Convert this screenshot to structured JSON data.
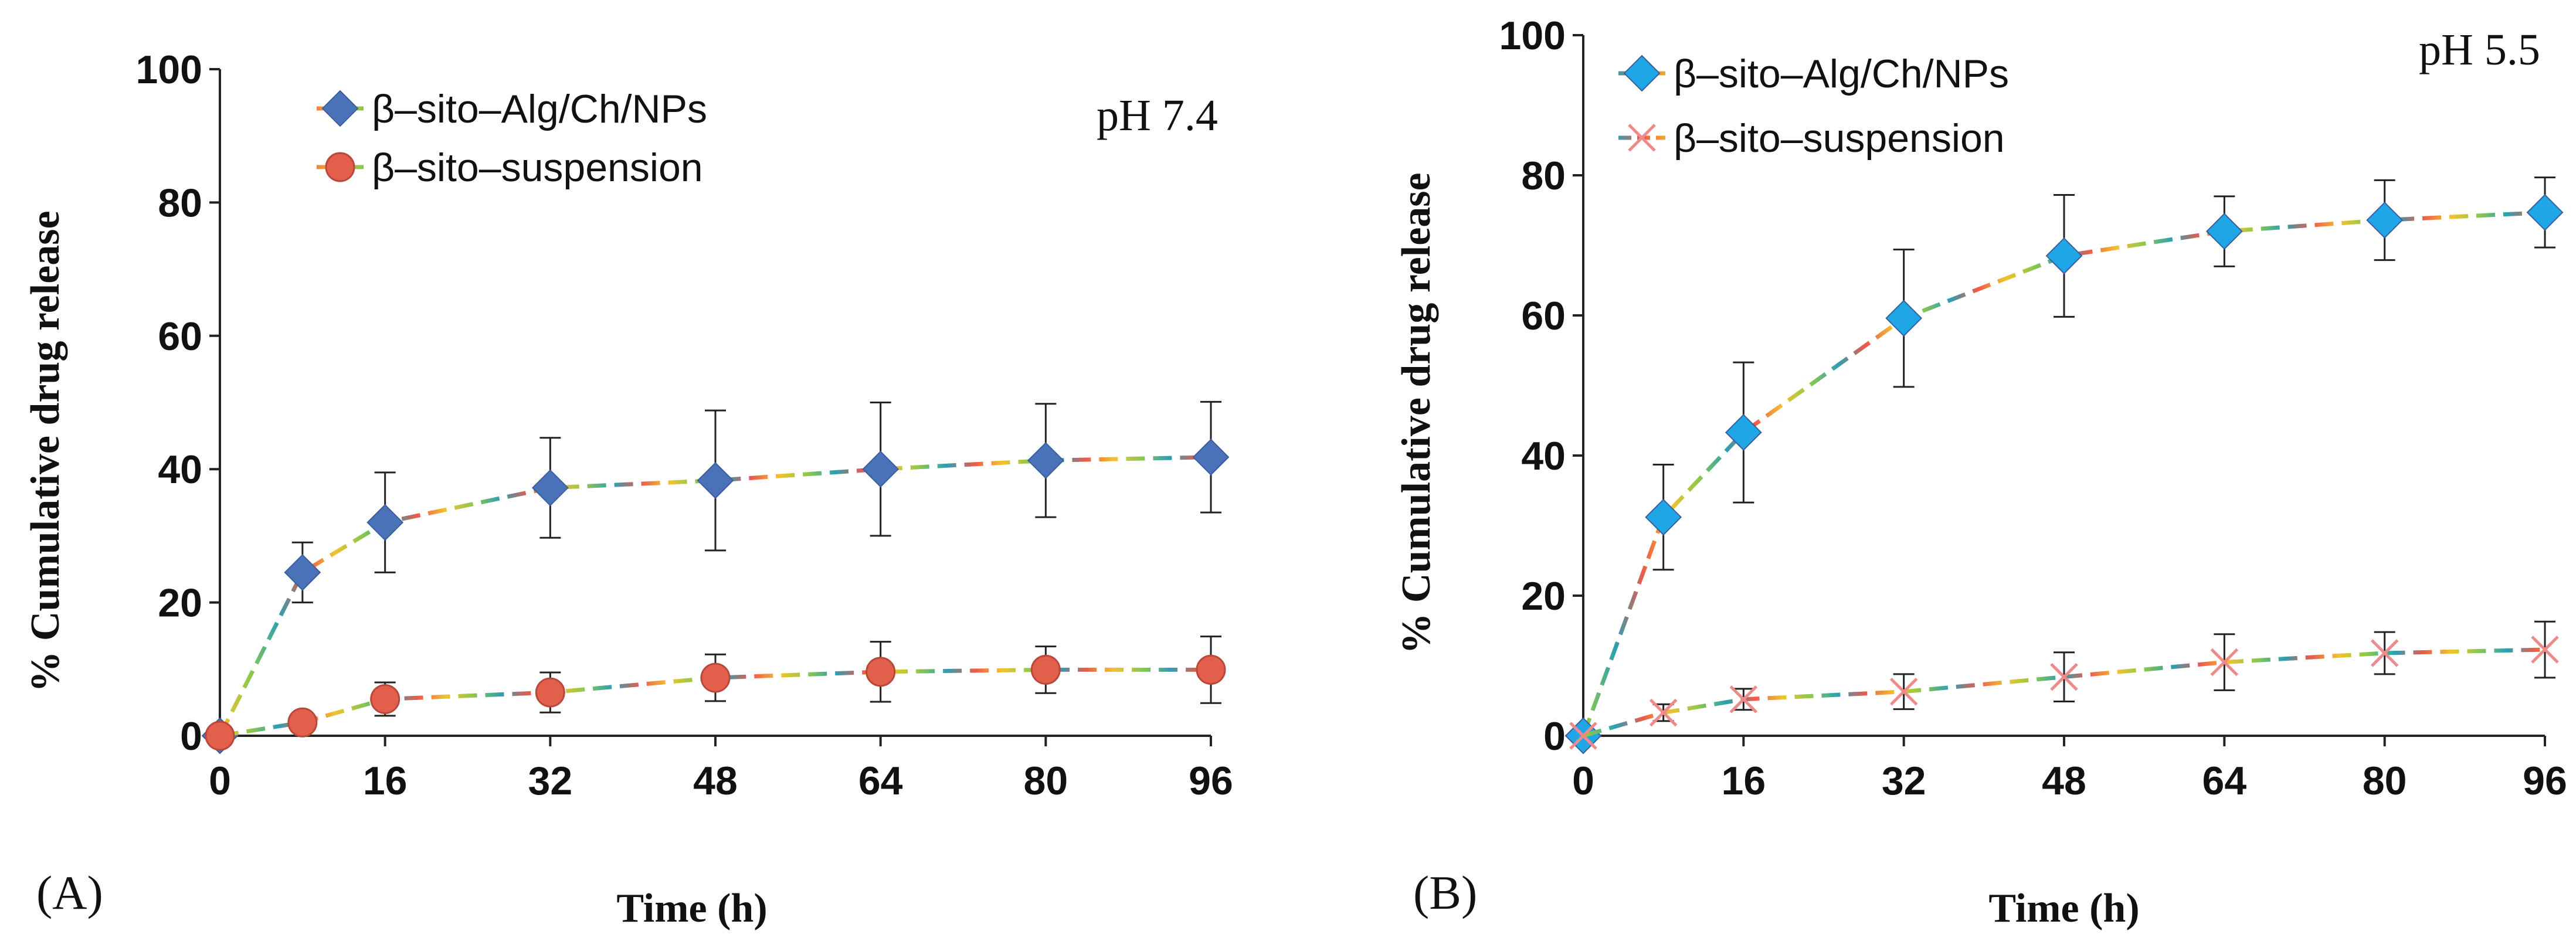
{
  "chart_data": [
    {
      "type": "line",
      "panel_label": "(A)",
      "annotation": "pH 7.4",
      "xlabel": "Time (h)",
      "ylabel": "% Cumulative drug release",
      "xlim": [
        0,
        96
      ],
      "ylim": [
        0,
        100
      ],
      "xticks": [
        0,
        16,
        32,
        48,
        64,
        80,
        96
      ],
      "yticks": [
        0,
        20,
        40,
        60,
        80,
        100
      ],
      "grid": false,
      "legend_position": "top-center",
      "series": [
        {
          "name": "β–sito–Alg/Ch/NPs",
          "marker": "diamond",
          "marker_color": "#4a72b8",
          "x": [
            0,
            8,
            16,
            32,
            48,
            64,
            80,
            96
          ],
          "y": [
            0,
            24.5,
            32,
            37.2,
            38.3,
            40,
            41.3,
            41.8
          ],
          "error": [
            0,
            4.5,
            7.5,
            7.5,
            10.5,
            10,
            8.5,
            8.3
          ]
        },
        {
          "name": "β–sito–suspension",
          "marker": "circle",
          "marker_color": "#e15f4b",
          "x": [
            0,
            8,
            16,
            32,
            48,
            64,
            80,
            96
          ],
          "y": [
            0,
            2,
            5.5,
            6.5,
            8.7,
            9.6,
            9.9,
            9.9
          ],
          "error": [
            0,
            1,
            2.5,
            3,
            3.5,
            4.5,
            3.5,
            5
          ]
        }
      ]
    },
    {
      "type": "line",
      "panel_label": "(B)",
      "annotation": "pH 5.5",
      "xlabel": "Time (h)",
      "ylabel": "% Cumulative drug release",
      "xlim": [
        0,
        96
      ],
      "ylim": [
        0,
        100
      ],
      "xticks": [
        0,
        16,
        32,
        48,
        64,
        80,
        96
      ],
      "yticks": [
        0,
        20,
        40,
        60,
        80,
        100
      ],
      "grid": false,
      "legend_position": "top-left",
      "series": [
        {
          "name": "β–sito–Alg/Ch/NPs",
          "marker": "diamond",
          "marker_color": "#1fa6e6",
          "x": [
            0,
            8,
            16,
            32,
            48,
            64,
            80,
            96
          ],
          "y": [
            0,
            31.2,
            43.3,
            59.6,
            68.5,
            72,
            73.6,
            74.7
          ],
          "error": [
            0,
            7.5,
            10,
            9.8,
            8.7,
            5,
            5.7,
            5
          ]
        },
        {
          "name": "β–sito–suspension",
          "marker": "x",
          "marker_color": "#ef8a8a",
          "x": [
            0,
            8,
            16,
            32,
            48,
            64,
            80,
            96
          ],
          "y": [
            0,
            3.3,
            5.2,
            6.3,
            8.4,
            10.5,
            11.8,
            12.3
          ],
          "error": [
            0,
            1.2,
            1.5,
            2.5,
            3.5,
            4,
            3,
            4
          ]
        }
      ]
    }
  ]
}
